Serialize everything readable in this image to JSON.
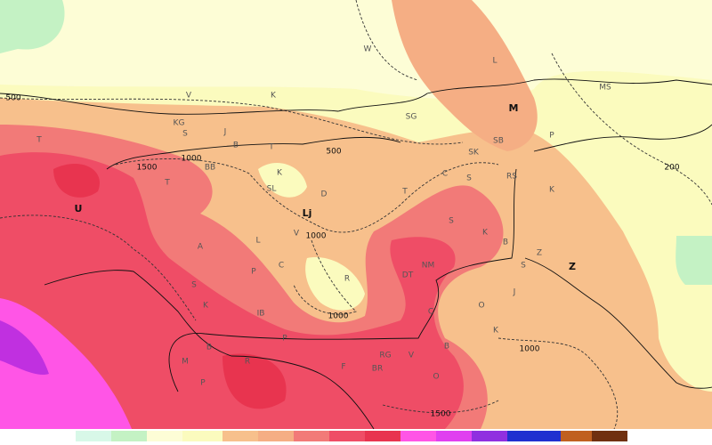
{
  "map": {
    "contour_labels": [
      500,
      500,
      1500,
      1500,
      1000,
      1000,
      1000,
      1000,
      200
    ],
    "cities": [
      "M",
      "Lj",
      "Z",
      "U"
    ],
    "places": [
      "W",
      "L",
      "MS",
      "V",
      "K",
      "KG",
      "S",
      "SG",
      "SB",
      "P",
      "SK",
      "J",
      "B",
      "T",
      "BB",
      "K",
      "SL",
      "D",
      "T",
      "C",
      "S",
      "RS",
      "K",
      "S",
      "K",
      "B",
      "Z",
      "S",
      "T",
      "T",
      "V",
      "L",
      "A",
      "P",
      "C",
      "R",
      "DT",
      "NM",
      "C",
      "J",
      "O",
      "K",
      "S",
      "K",
      "IB",
      "B",
      "P",
      "M",
      "P",
      "R",
      "F",
      "RG",
      "V",
      "BR",
      "O",
      "B"
    ]
  }
}
